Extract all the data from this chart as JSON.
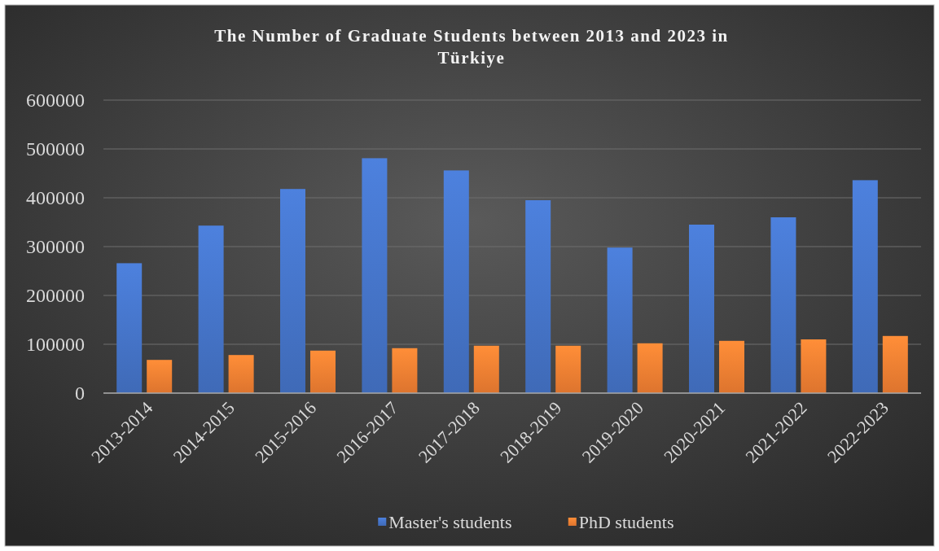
{
  "chart_data": {
    "type": "bar",
    "title": "The Number of Graduate Students between 2013 and 2023 in Türkiye",
    "categories": [
      "2013-2014",
      "2014-2015",
      "2015-2016",
      "2016-2017",
      "2017-2018",
      "2018-2019",
      "2019-2020",
      "2020-2021",
      "2021-2022",
      "2022-2023"
    ],
    "series": [
      {
        "name": "Master's students",
        "color": "#4472c4",
        "values": [
          266000,
          343000,
          418000,
          481000,
          456000,
          395000,
          298000,
          345000,
          360000,
          436000
        ]
      },
      {
        "name": "PhD students",
        "color": "#ed7d31",
        "values": [
          68000,
          78000,
          87000,
          92000,
          97000,
          97000,
          102000,
          107000,
          110000,
          117000
        ]
      }
    ],
    "ylim": [
      0,
      600000
    ],
    "yticks": [
      0,
      100000,
      200000,
      300000,
      400000,
      500000,
      600000
    ],
    "grid": "y",
    "legend": "bottom"
  }
}
